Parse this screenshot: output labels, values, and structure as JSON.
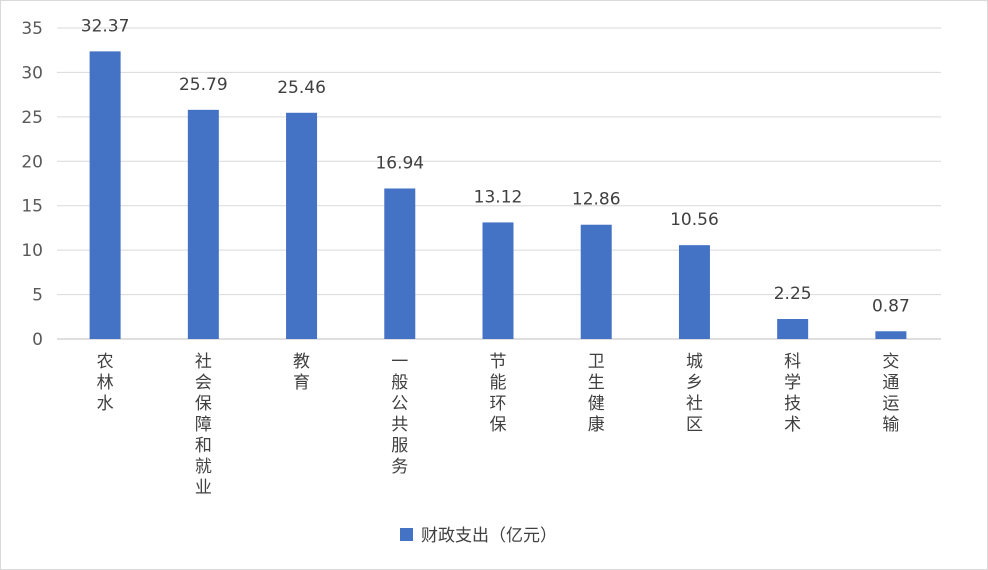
{
  "chart_data": {
    "type": "bar",
    "categories": [
      "农林水",
      "社会保障和就业",
      "教育",
      "一般公共服务",
      "节能环保",
      "卫生健康",
      "城乡社区",
      "科学技术",
      "交通运输"
    ],
    "series": [
      {
        "name": "财政支出（亿元）",
        "values": [
          32.37,
          25.79,
          25.46,
          16.94,
          13.12,
          12.86,
          10.56,
          2.25,
          0.87
        ]
      }
    ],
    "data_labels": [
      "32.37",
      "25.79",
      "25.46",
      "16.94",
      "13.12",
      "12.86",
      "10.56",
      "2.25",
      "0.87"
    ],
    "ylim": [
      0,
      35
    ],
    "yticks": [
      0,
      5,
      10,
      15,
      20,
      25,
      30,
      35
    ],
    "grid": true,
    "legend": "bottom",
    "colors": {
      "bar": "#4472c4",
      "grid": "#d9d9d9",
      "axis": "#bfbfbf"
    }
  }
}
